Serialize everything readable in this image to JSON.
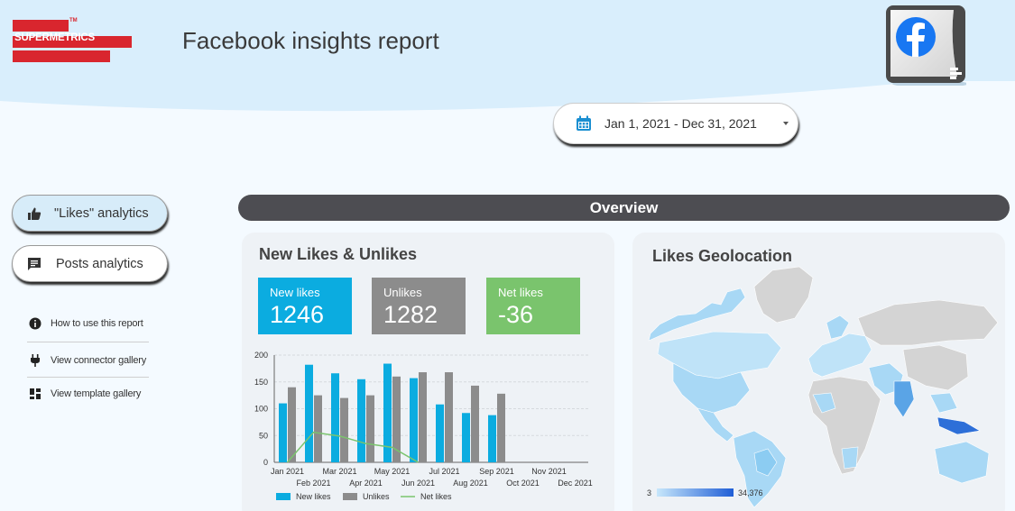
{
  "header": {
    "logo_text": "SUPERMETRICS",
    "logo_tm": "TM",
    "title": "Facebook insights report"
  },
  "date_range": {
    "label": "Jan 1, 2021 - Dec 31, 2021"
  },
  "nav": {
    "likes_label": "\"Likes\" analytics",
    "posts_label": "Posts analytics"
  },
  "links": [
    {
      "label": "How to use this report"
    },
    {
      "label": "View connector gallery"
    },
    {
      "label": "View template gallery"
    }
  ],
  "overview_label": "Overview",
  "likes_card": {
    "title": "New Likes & Unlikes",
    "kpis": [
      {
        "label": "New likes",
        "value": "1246"
      },
      {
        "label": "Unlikes",
        "value": "1282"
      },
      {
        "label": "Net likes",
        "value": "-36"
      }
    ]
  },
  "geo_card": {
    "title": "Likes Geolocation",
    "legend_min": "3",
    "legend_max": "34,376"
  },
  "colors": {
    "new_likes": "#0bace0",
    "unlikes": "#8c8c8c",
    "net_likes": "#7ac46d",
    "accent": "#1a8fd1"
  },
  "chart_data": {
    "type": "bar",
    "categories": [
      "Jan 2021",
      "Feb 2021",
      "Mar 2021",
      "Apr 2021",
      "May 2021",
      "Jun 2021",
      "Jul 2021",
      "Aug 2021",
      "Sep 2021",
      "Oct 2021",
      "Nov 2021",
      "Dec 2021"
    ],
    "series": [
      {
        "name": "New likes",
        "type": "bar",
        "values": [
          110,
          182,
          166,
          155,
          184,
          157,
          108,
          92,
          88,
          null,
          null,
          null
        ]
      },
      {
        "name": "Unlikes",
        "type": "bar",
        "values": [
          140,
          125,
          120,
          125,
          160,
          168,
          168,
          143,
          128,
          null,
          null,
          null
        ]
      },
      {
        "name": "Net likes",
        "type": "line",
        "values": [
          0,
          56,
          49,
          35,
          28,
          0,
          null,
          null,
          null,
          null,
          null,
          null
        ]
      }
    ],
    "ylim": [
      0,
      200
    ],
    "yticks": [
      "0",
      "50",
      "100",
      "150",
      "200"
    ],
    "legend": "bottom",
    "grid": true
  }
}
